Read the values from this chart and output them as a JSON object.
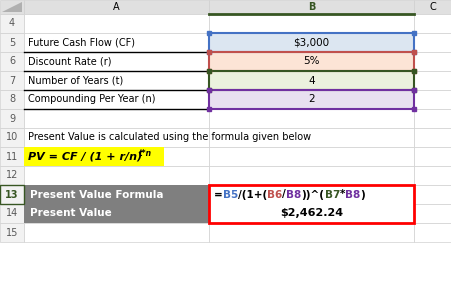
{
  "col_header_A": "A",
  "col_header_B": "B",
  "col_header_C": "C",
  "row5_label": "Future Cash Flow (CF)",
  "row5_value": "$3,000",
  "row6_label": "Discount Rate (r)",
  "row6_value": "5%",
  "row7_label": "Number of Years (t)",
  "row7_value": "4",
  "row8_label": "Compounding Per Year (n)",
  "row8_value": "2",
  "row10_text": "Present Value is calculated using the formula given below",
  "row11_formula_main": "PV = CF / (1 + r/n) ",
  "row11_superscript": "t*n",
  "row13_label": "Present Value Formula",
  "row14_label": "Present Value",
  "row14_value": "$2,462.24",
  "bg_row5": "#dce6f1",
  "border_row5": "#4472c4",
  "bg_row6": "#fce4d6",
  "border_row6": "#c0504d",
  "bg_row7": "#ebf1de",
  "border_row7": "#375623",
  "bg_row8": "#e8e0f0",
  "border_row8": "#7030a0",
  "col_b_header_border": "#375623",
  "row_number_color": "#595959",
  "row13_bg": "#7f7f7f",
  "row14_bg": "#7f7f7f",
  "row13_text_color": "#ffffff",
  "row14_text_color": "#ffffff",
  "formula_border_color": "#ff0000",
  "row11_bg": "#ffff00",
  "formula_b5_color": "#4472c4",
  "formula_b6_color": "#c0504d",
  "formula_b8_color": "#7030a0",
  "formula_b7_color": "#375623",
  "formula_other_color": "#000000",
  "grid_color": "#d0d0d0",
  "thick_border_color": "#000000",
  "background_color": "#ffffff",
  "header_bg": "#e0e0e0",
  "rownum_bg": "#f2f2f2",
  "col_b_header_text": "#375623"
}
